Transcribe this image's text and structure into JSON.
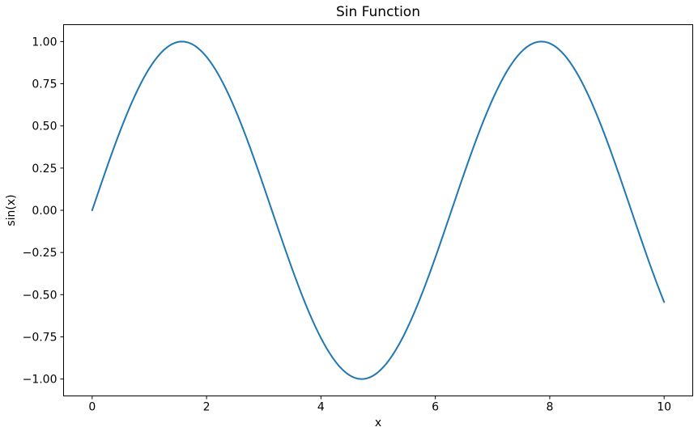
{
  "chart_data": {
    "type": "line",
    "title": "Sin Function",
    "xlabel": "x",
    "ylabel": "sin(x)",
    "xlim": [
      -0.5,
      10.5
    ],
    "ylim": [
      -1.1,
      1.1
    ],
    "xticks": [
      0,
      2,
      4,
      6,
      8,
      10
    ],
    "xtick_labels": [
      "0",
      "2",
      "4",
      "6",
      "8",
      "10"
    ],
    "yticks": [
      -1.0,
      -0.75,
      -0.5,
      -0.25,
      0.0,
      0.25,
      0.5,
      0.75,
      1.0
    ],
    "ytick_labels": [
      "−1.00",
      "−0.75",
      "−0.50",
      "−0.25",
      "0.00",
      "0.25",
      "0.50",
      "0.75",
      "1.00"
    ],
    "grid": false,
    "legend": null,
    "background_color": "#ffffff",
    "spine_color": "#000000",
    "text_color": "#000000",
    "series": [
      {
        "name": "sin(x)",
        "color": "#1f77b4",
        "line_width": 2,
        "function": "sin",
        "x_start": 0,
        "x_end": 10,
        "n_points": 200,
        "sample_x": [
          0,
          0.5,
          1,
          1.5,
          2,
          2.5,
          3,
          3.5,
          4,
          4.5,
          5,
          5.5,
          6,
          6.5,
          7,
          7.5,
          8,
          8.5,
          9,
          9.5,
          10
        ],
        "sample_y": [
          0.0,
          0.4794,
          0.8415,
          0.9975,
          0.9093,
          0.5985,
          0.1411,
          -0.3508,
          -0.7568,
          -0.9775,
          -0.9589,
          -0.7055,
          -0.2794,
          0.2151,
          0.657,
          0.938,
          0.9894,
          0.7985,
          0.4121,
          -0.0752,
          -0.544
        ]
      }
    ]
  }
}
